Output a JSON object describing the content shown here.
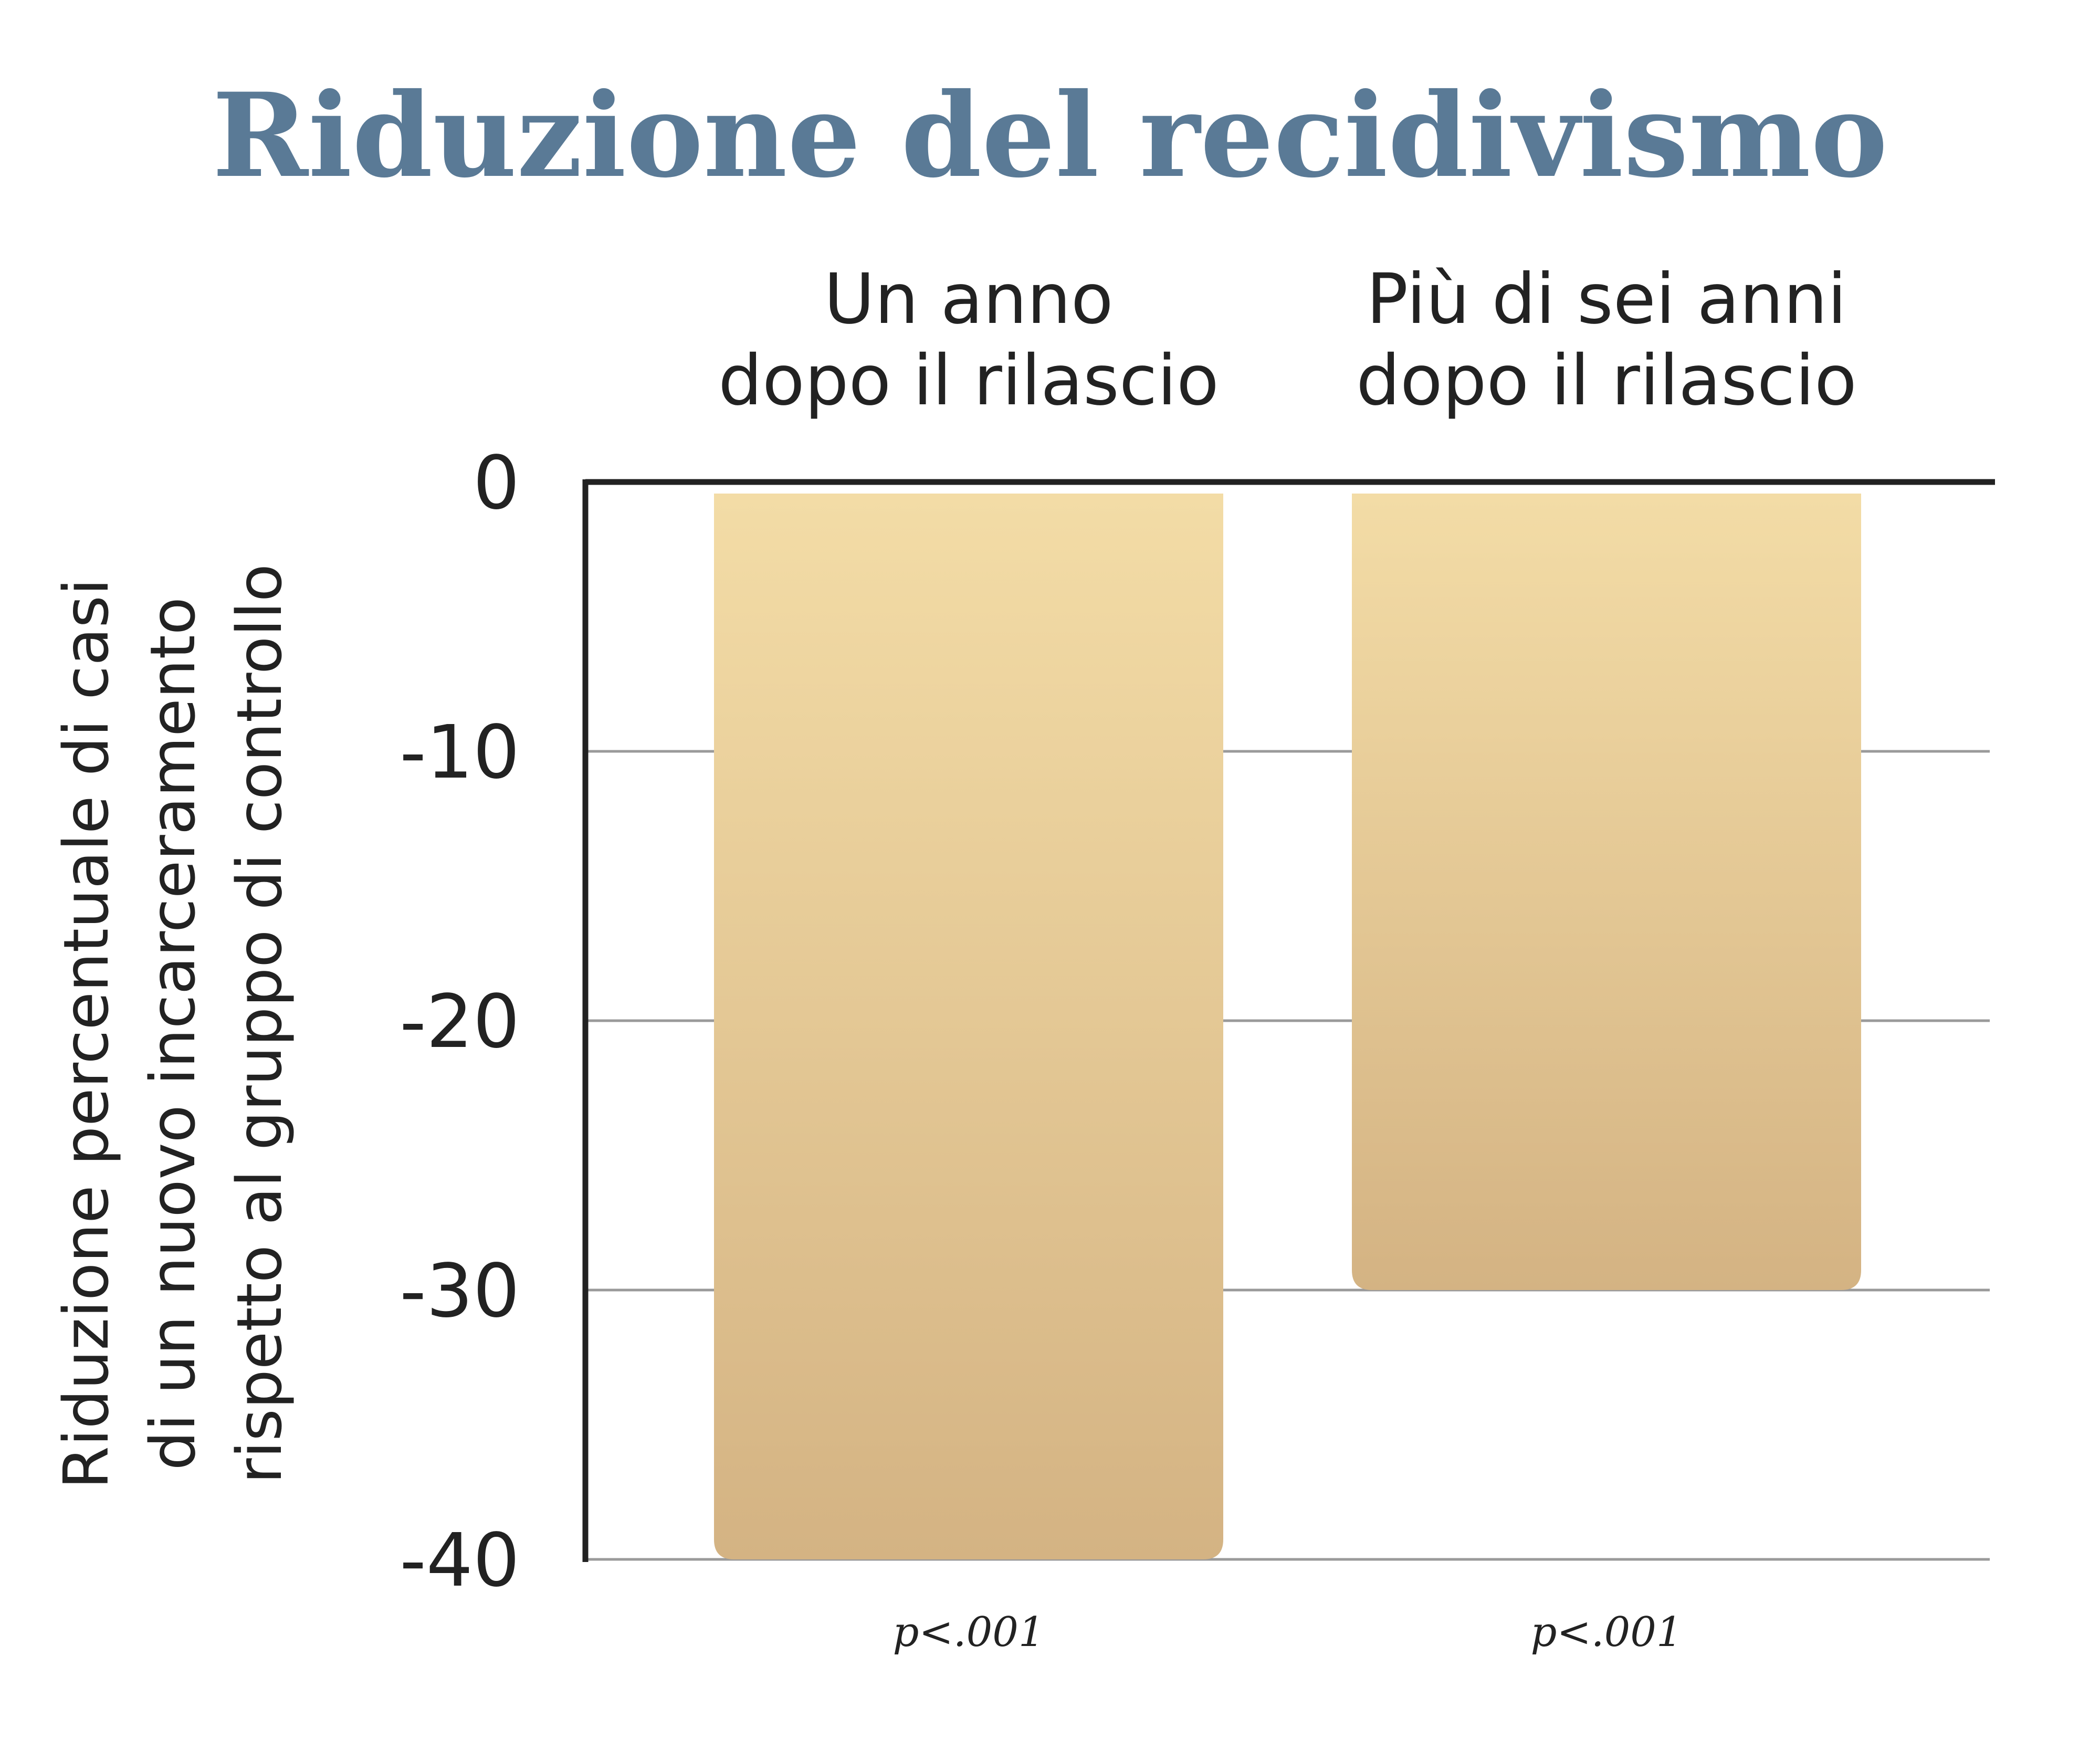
{
  "chart_data": {
    "type": "bar",
    "title": "Riduzione del recidivismo",
    "ylabel_lines": [
      "Riduzione percentuale di casi",
      "di un nuovo incarceramento",
      "rispetto al gruppo di controllo"
    ],
    "categories": [
      [
        "Un anno",
        "dopo il rilascio"
      ],
      [
        "Più di sei anni",
        "dopo il rilascio"
      ]
    ],
    "values": [
      -40,
      -30
    ],
    "annotations": [
      "p<.001",
      "p<.001"
    ],
    "yticks": [
      0,
      -10,
      -20,
      -30,
      -40
    ],
    "ylim": [
      -40,
      0
    ],
    "grid": true,
    "colors": {
      "title": "#5a7a96",
      "bar_top": "#f3dca6",
      "bar_bottom": "#d4b383",
      "axis": "#222222",
      "grid": "#9a9a9a",
      "text": "#222222"
    }
  }
}
